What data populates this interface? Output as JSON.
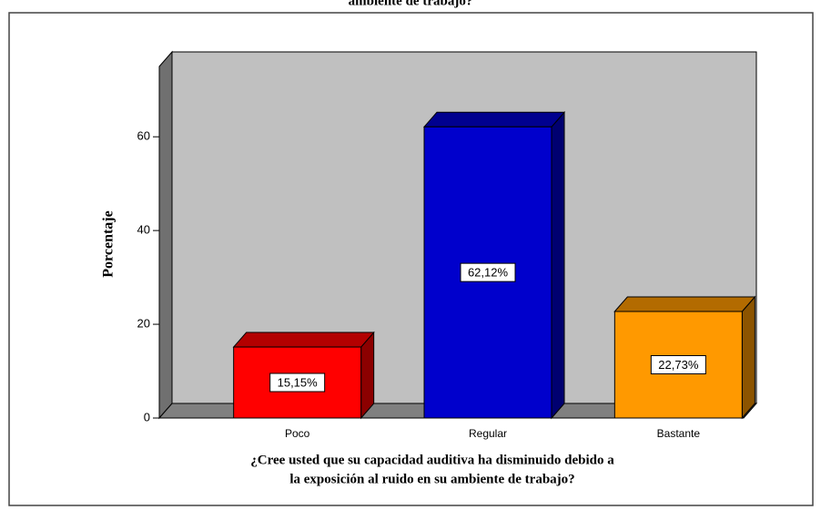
{
  "chart_data": {
    "type": "bar3d",
    "title": "ambiente de trabajo?",
    "ylabel": "Porcentaje",
    "xlabel": [
      "¿Cree usted que su capacidad auditiva ha disminuido debido a",
      "la exposición al ruido en su ambiente de trabajo?"
    ],
    "categories": [
      "Poco",
      "Regular",
      "Bastante"
    ],
    "values": [
      15.15,
      62.12,
      22.73
    ],
    "value_labels": [
      "15,15%",
      "62,12%",
      "22,73%"
    ],
    "colors": [
      "#ff0000",
      "#0000cc",
      "#ff9900"
    ],
    "ylim": [
      0,
      75
    ],
    "yticks": [
      0,
      20,
      40,
      60
    ]
  }
}
